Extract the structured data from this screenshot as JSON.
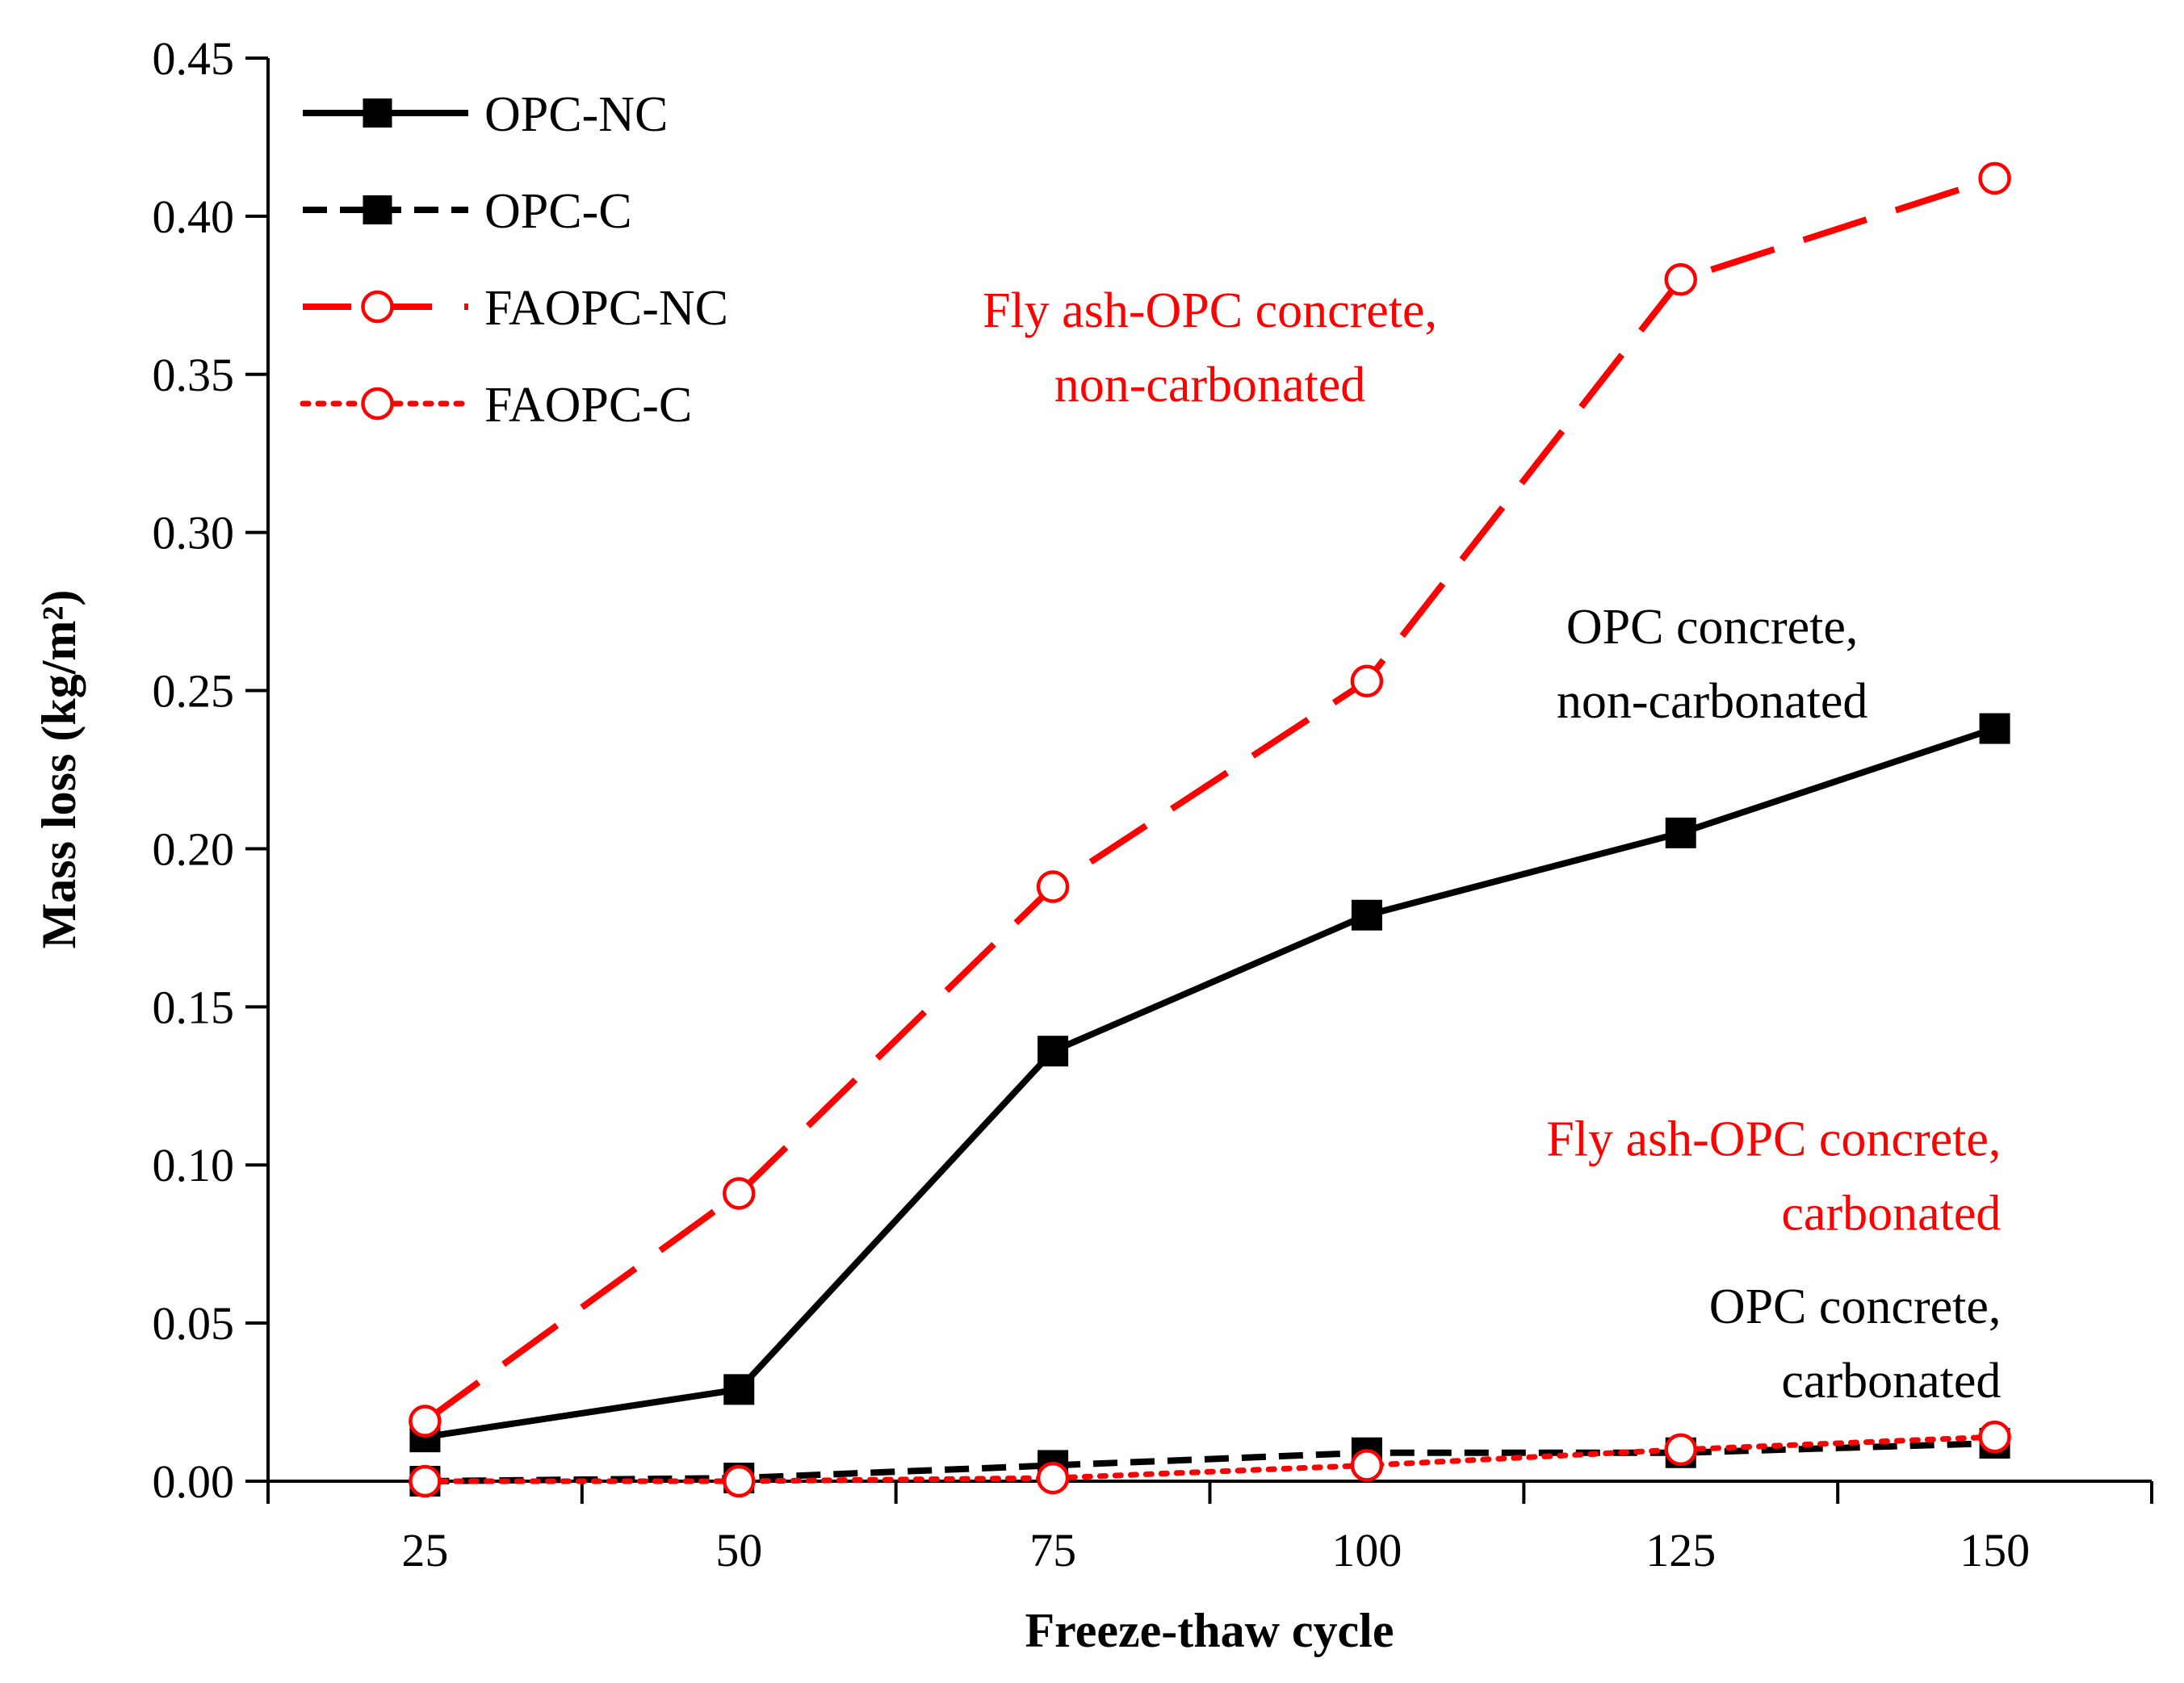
{
  "chart_data": {
    "type": "line",
    "title": "",
    "xlabel": "Freeze-thaw cycle",
    "ylabel": "Mass loss (kg/m²)",
    "x": [
      25,
      50,
      75,
      100,
      125,
      150
    ],
    "xlim": [
      12.5,
      162.5
    ],
    "ylim": [
      0,
      0.45
    ],
    "x_ticks": [
      "25",
      "50",
      "75",
      "100",
      "125",
      "150"
    ],
    "y_ticks": [
      "0.00",
      "0.05",
      "0.10",
      "0.15",
      "0.20",
      "0.25",
      "0.30",
      "0.35",
      "0.40",
      "0.45"
    ],
    "y_tick_values": [
      0,
      0.05,
      0.1,
      0.15,
      0.2,
      0.25,
      0.3,
      0.35,
      0.4,
      0.45
    ],
    "grid": false,
    "legend_position": "top-left",
    "series": [
      {
        "name": "OPC-NC",
        "values": [
          0.014,
          0.029,
          0.136,
          0.179,
          0.205,
          0.238
        ],
        "color": "#000000",
        "line_style": "solid",
        "marker": "filled-square"
      },
      {
        "name": "OPC-C",
        "values": [
          0.0,
          0.001,
          0.005,
          0.009,
          0.009,
          0.012
        ],
        "color": "#000000",
        "line_style": "dashed",
        "marker": "filled-square"
      },
      {
        "name": "FAOPC-NC",
        "values": [
          0.019,
          0.091,
          0.188,
          0.253,
          0.38,
          0.412
        ],
        "color": "#ff0000",
        "line_style": "long-dash",
        "marker": "open-circle"
      },
      {
        "name": "FAOPC-C",
        "values": [
          0.0,
          0.0,
          0.001,
          0.005,
          0.01,
          0.014
        ],
        "color": "#ff0000",
        "line_style": "dotted",
        "marker": "open-circle"
      }
    ],
    "annotations": [
      {
        "lines": [
          "Fly ash-OPC concrete,",
          "non-carbonated"
        ],
        "color": "#ff0000",
        "align": "center",
        "anchor_x": 87.5,
        "anchor_y": 0.365
      },
      {
        "lines": [
          "OPC concrete,",
          "non-carbonated"
        ],
        "color": "#000000",
        "align": "center",
        "anchor_x": 127.5,
        "anchor_y": 0.265
      },
      {
        "lines": [
          "Fly ash-OPC concrete,",
          "carbonated"
        ],
        "color": "#ff0000",
        "align": "right",
        "anchor_x": 150.5,
        "anchor_y": 0.103
      },
      {
        "lines": [
          "OPC concrete,",
          "carbonated"
        ],
        "color": "#000000",
        "align": "right",
        "anchor_x": 150.5,
        "anchor_y": 0.05
      }
    ]
  }
}
